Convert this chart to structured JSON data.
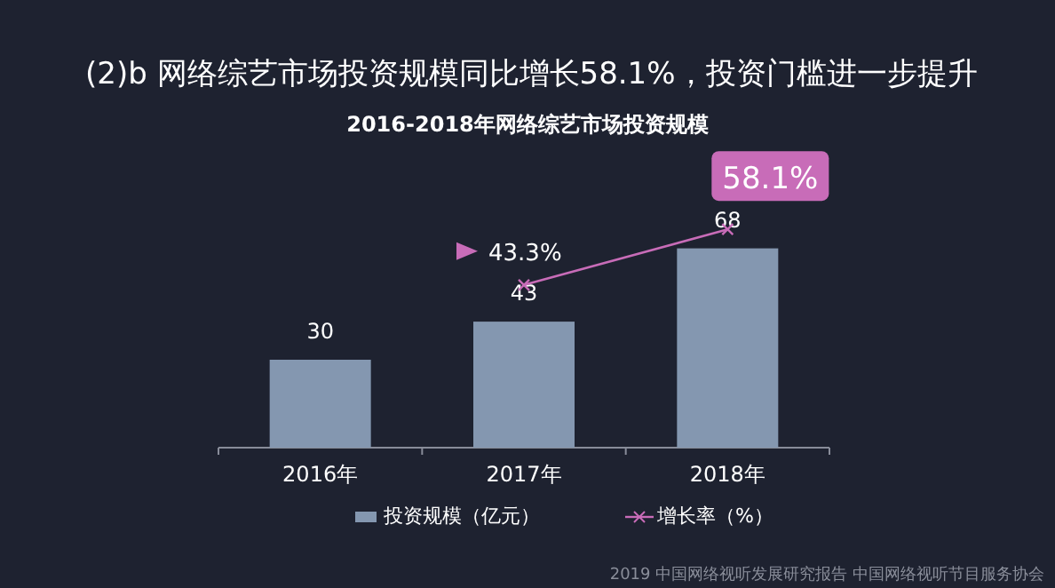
{
  "chart_data": {
    "type": "bar",
    "title": "(2)b 网络综艺市场投资规模同比增长58.1%，投资门槛进一步提升",
    "subtitle": "2016-2018年网络综艺市场投资规模",
    "categories": [
      "2016年",
      "2017年",
      "2018年"
    ],
    "series": [
      {
        "name": "投资规模（亿元）",
        "color": "#8497b0",
        "values": [
          30,
          43,
          68
        ]
      },
      {
        "name": "增长率（%）",
        "type": "line",
        "axis": "y2",
        "color": "#c86cb8",
        "marker": "cross",
        "values": [
          null,
          43.3,
          58.1
        ],
        "value_labels": [
          null,
          "43.3%",
          "58.1%"
        ]
      }
    ],
    "ylim": [
      0,
      100
    ],
    "y2lim": [
      0,
      78
    ],
    "tick_labels": "x",
    "data_labels": true,
    "legend": "bottom",
    "annotations": [
      "2019 中国网络视听发展研究报告 中国网络视听节目服务协会"
    ]
  }
}
